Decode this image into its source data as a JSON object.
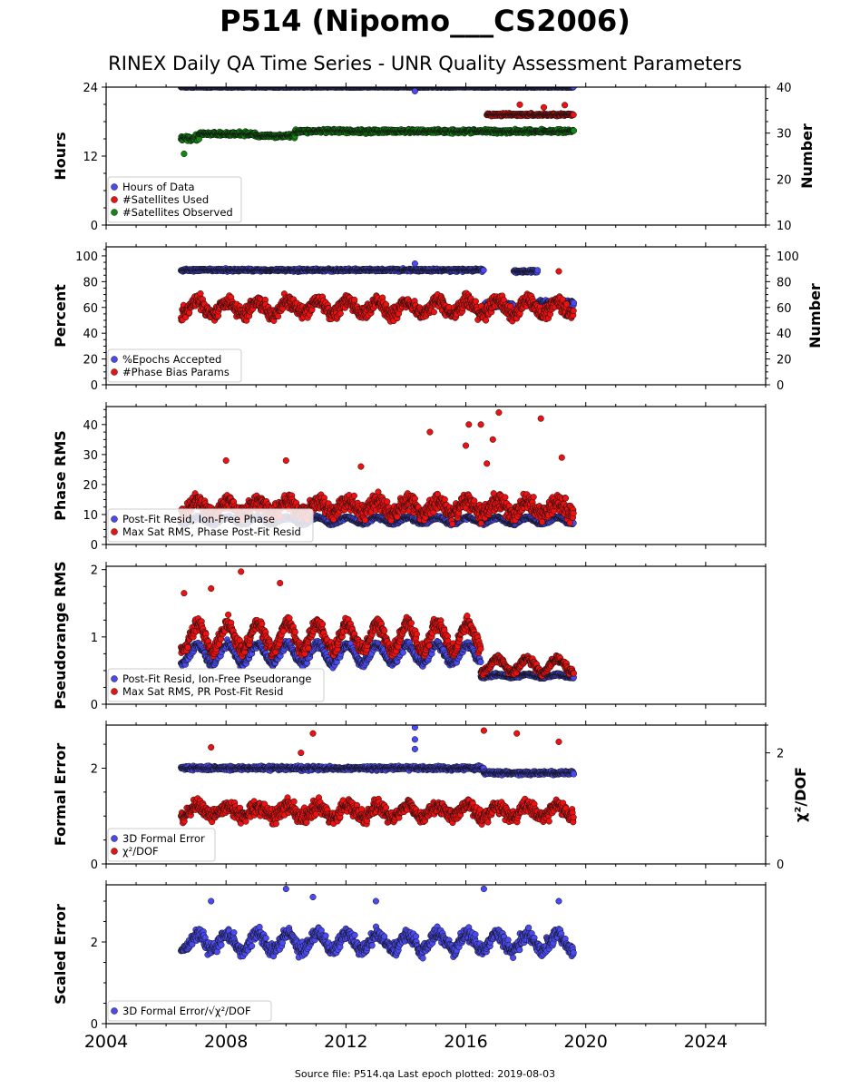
{
  "title": "P514 (Nipomo___CS2006)",
  "subtitle": "RINEX Daily QA Time Series - UNR Quality Assessment Parameters",
  "footer": "Source file: P514.qa Last epoch plotted: 2019-08-03",
  "colors": {
    "blue": "#4a4af0",
    "red": "#ee1111",
    "green": "#118811",
    "dark_red": "#550000",
    "edge": "#111111"
  },
  "x_axis": {
    "range": [
      2004,
      2026
    ],
    "tick_labels": [
      "2004",
      "2008",
      "2012",
      "2016",
      "2020",
      "2024"
    ],
    "tick_values": [
      2004,
      2008,
      2012,
      2016,
      2020,
      2024
    ]
  },
  "chart_data": [
    {
      "type": "scatter",
      "ylabel": "Hours",
      "ylim": [
        0,
        24
      ],
      "yticks": [
        0,
        12,
        24
      ],
      "y2label": "Number",
      "y2lim": [
        10,
        40
      ],
      "y2ticks": [
        10,
        20,
        30,
        40
      ],
      "legend": "bottom-left",
      "series": [
        {
          "name": "Hours of Data",
          "color": "blue",
          "axis": "left",
          "segments": [
            {
              "x": [
                2006.5,
                2019.6
              ],
              "base": 24.0,
              "spread": 0.1
            }
          ],
          "outliers": [
            {
              "x": 2014.3,
              "y": 23.3
            }
          ]
        },
        {
          "name": "#Satellites Used",
          "color": "red",
          "axis": "right",
          "segments": [
            {
              "x": [
                2016.7,
                2019.6
              ],
              "base": 34.0,
              "spread": 0.4
            }
          ],
          "outliers": [
            {
              "x": 2017.8,
              "y": 36.2
            },
            {
              "x": 2018.6,
              "y": 35.6
            },
            {
              "x": 2019.3,
              "y": 36.1
            }
          ]
        },
        {
          "name": "#Satellites Observed",
          "color": "green",
          "axis": "right",
          "segments": [
            {
              "x": [
                2006.5,
                2007.1
              ],
              "base": 29.0,
              "spread": 1.0
            },
            {
              "x": [
                2007.1,
                2009.0
              ],
              "base": 29.8,
              "spread": 0.6
            },
            {
              "x": [
                2009.0,
                2010.3
              ],
              "base": 29.4,
              "spread": 0.5
            },
            {
              "x": [
                2010.3,
                2019.6
              ],
              "base": 30.4,
              "spread": 0.6
            }
          ],
          "outliers": [
            {
              "x": 2006.6,
              "y": 25.5
            }
          ]
        }
      ]
    },
    {
      "type": "scatter",
      "ylabel": "Percent",
      "ylim": [
        0,
        107
      ],
      "yticks": [
        0,
        20,
        40,
        60,
        80,
        100
      ],
      "y2label": "Number",
      "y2lim": [
        0,
        107
      ],
      "y2ticks": [
        0,
        20,
        40,
        60,
        80,
        100
      ],
      "legend": "bottom-left",
      "series": [
        {
          "name": "%Epochs Accepted",
          "color": "blue",
          "axis": "left",
          "segments": [
            {
              "x": [
                2006.5,
                2016.6
              ],
              "base": 89.0,
              "spread": 1.5
            },
            {
              "x": [
                2016.6,
                2017.6
              ],
              "base": 62.0,
              "spread": 3.0
            },
            {
              "x": [
                2017.6,
                2018.4
              ],
              "base": 88.0,
              "spread": 1.5
            },
            {
              "x": [
                2018.4,
                2019.6
              ],
              "base": 64.0,
              "spread": 3.0
            }
          ],
          "outliers": [
            {
              "x": 2014.3,
              "y": 94
            }
          ]
        },
        {
          "name": "#Phase Bias Params",
          "color": "red",
          "axis": "right",
          "segments": [
            {
              "x": [
                2006.5,
                2019.6
              ],
              "base": 60.0,
              "spread": 8.0,
              "seasonal": 5.0
            }
          ],
          "outliers": [
            {
              "x": 2019.1,
              "y": 88
            }
          ]
        }
      ]
    },
    {
      "type": "scatter",
      "ylabel": "Phase RMS",
      "ylim": [
        0,
        46
      ],
      "yticks": [
        0,
        10,
        20,
        30,
        40
      ],
      "legend": "bottom-left",
      "series": [
        {
          "name": "Post-Fit Resid, Ion-Free Phase",
          "color": "blue",
          "axis": "left",
          "segments": [
            {
              "x": [
                2006.5,
                2019.6
              ],
              "base": 8.0,
              "spread": 0.8,
              "seasonal": 1.0
            }
          ],
          "outliers": []
        },
        {
          "name": "Max Sat RMS, Phase Post-Fit Resid",
          "color": "red",
          "axis": "left",
          "segments": [
            {
              "x": [
                2006.5,
                2019.6
              ],
              "base": 12.5,
              "spread": 4.0,
              "seasonal": 2.0
            }
          ],
          "outliers": [
            {
              "x": 2014.8,
              "y": 37.5
            },
            {
              "x": 2016.1,
              "y": 40
            },
            {
              "x": 2016.5,
              "y": 40
            },
            {
              "x": 2017.1,
              "y": 44
            },
            {
              "x": 2018.5,
              "y": 42
            },
            {
              "x": 2016.9,
              "y": 35
            },
            {
              "x": 2016.0,
              "y": 33
            },
            {
              "x": 2019.2,
              "y": 29
            },
            {
              "x": 2010.0,
              "y": 28
            },
            {
              "x": 2008.0,
              "y": 28
            },
            {
              "x": 2012.5,
              "y": 26
            },
            {
              "x": 2016.7,
              "y": 27
            }
          ]
        }
      ]
    },
    {
      "type": "scatter",
      "ylabel": "Pseudorange RMS",
      "ylim": [
        0,
        2.05
      ],
      "yticks": [
        0,
        1,
        2
      ],
      "legend": "bottom-left",
      "series": [
        {
          "name": "Post-Fit Resid, Ion-Free Pseudorange",
          "color": "blue",
          "axis": "left",
          "segments": [
            {
              "x": [
                2006.5,
                2016.5
              ],
              "base": 0.75,
              "spread": 0.08,
              "seasonal": 0.14
            },
            {
              "x": [
                2016.5,
                2019.6
              ],
              "base": 0.42,
              "spread": 0.03,
              "seasonal": 0.02
            }
          ],
          "outliers": []
        },
        {
          "name": "Max Sat RMS, PR Post-Fit Resid",
          "color": "red",
          "axis": "left",
          "segments": [
            {
              "x": [
                2006.5,
                2016.5
              ],
              "base": 1.0,
              "spread": 0.15,
              "seasonal": 0.2
            },
            {
              "x": [
                2016.5,
                2019.6
              ],
              "base": 0.58,
              "spread": 0.08,
              "seasonal": 0.1
            }
          ],
          "outliers": [
            {
              "x": 2008.5,
              "y": 1.97
            },
            {
              "x": 2009.8,
              "y": 1.8
            },
            {
              "x": 2007.5,
              "y": 1.72
            },
            {
              "x": 2006.6,
              "y": 1.65
            }
          ]
        }
      ]
    },
    {
      "type": "scatter",
      "ylabel": "Formal Error",
      "ylim": [
        0,
        2.9
      ],
      "yticks": [
        0,
        2
      ],
      "y2label": "χ²/DOF",
      "y2lim": [
        0,
        2.5
      ],
      "y2ticks": [
        0,
        2
      ],
      "legend": "bottom-left",
      "series": [
        {
          "name": "3D Formal Error",
          "color": "blue",
          "axis": "left",
          "segments": [
            {
              "x": [
                2006.5,
                2016.6
              ],
              "base": 2.0,
              "spread": 0.06
            },
            {
              "x": [
                2016.6,
                2019.6
              ],
              "base": 1.9,
              "spread": 0.06
            }
          ],
          "outliers": [
            {
              "x": 2014.3,
              "y": 2.85
            },
            {
              "x": 2014.3,
              "y": 2.6
            },
            {
              "x": 2014.3,
              "y": 2.4
            }
          ]
        },
        {
          "name": "χ²/DOF",
          "color": "red",
          "axis": "right",
          "segments": [
            {
              "x": [
                2006.5,
                2019.6
              ],
              "base": 0.95,
              "spread": 0.18,
              "seasonal": 0.1
            }
          ],
          "outliers": [
            {
              "x": 2007.5,
              "y": 2.1
            },
            {
              "x": 2010.9,
              "y": 2.35
            },
            {
              "x": 2016.6,
              "y": 2.4
            },
            {
              "x": 2017.7,
              "y": 2.35
            },
            {
              "x": 2019.1,
              "y": 2.2
            },
            {
              "x": 2010.5,
              "y": 2.0
            }
          ]
        }
      ]
    },
    {
      "type": "scatter",
      "ylabel": "Scaled Error",
      "ylim": [
        0,
        3.4
      ],
      "yticks": [
        0,
        2
      ],
      "legend": "bottom-left",
      "series": [
        {
          "name": "3D Formal Error/√χ²/DOF",
          "color": "blue",
          "axis": "left",
          "segments": [
            {
              "x": [
                2006.5,
                2019.6
              ],
              "base": 2.0,
              "spread": 0.25,
              "seasonal": 0.2
            }
          ],
          "outliers": [
            {
              "x": 2010.0,
              "y": 3.3
            },
            {
              "x": 2016.6,
              "y": 3.3
            },
            {
              "x": 2007.5,
              "y": 3.0
            },
            {
              "x": 2010.9,
              "y": 3.1
            },
            {
              "x": 2019.1,
              "y": 3.0
            },
            {
              "x": 2013.0,
              "y": 3.0
            }
          ]
        }
      ]
    }
  ]
}
